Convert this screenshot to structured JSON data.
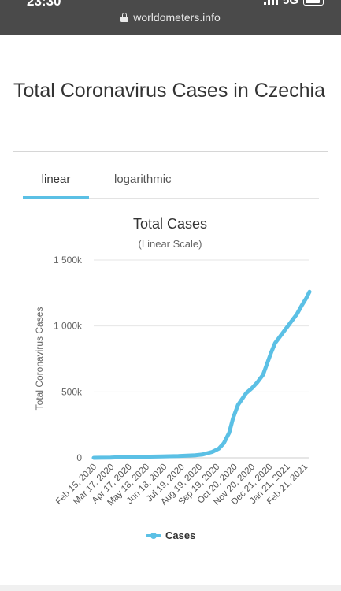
{
  "status_bar": {
    "time": "23:30",
    "network": "5G",
    "signal_icon": "signal-bars-icon",
    "battery_icon": "battery-icon"
  },
  "browser": {
    "url": "worldometers.info",
    "lock_icon": "lock-icon"
  },
  "page": {
    "title": "Total Coronavirus Cases in Czechia"
  },
  "tabs": {
    "linear": "linear",
    "logarithmic": "logarithmic",
    "active": "linear"
  },
  "colors": {
    "series": "#5bc0e5",
    "text": "#333333",
    "grid": "#e6e6e6"
  },
  "chart_data": {
    "type": "line",
    "title": "Total Cases",
    "subtitle": "(Linear Scale)",
    "ylabel": "Total Coronavirus Cases",
    "ylim": [
      0,
      1500000
    ],
    "yticks": [
      {
        "value": 0,
        "label": "0"
      },
      {
        "value": 500000,
        "label": "500k"
      },
      {
        "value": 1000000,
        "label": "1 000k"
      },
      {
        "value": 1500000,
        "label": "1 500k"
      }
    ],
    "xticks": [
      "Feb 15, 2020",
      "Mar 17, 2020",
      "Apr 17, 2020",
      "May 18, 2020",
      "Jun 18, 2020",
      "Jul 19, 2020",
      "Aug 19, 2020",
      "Sep 19, 2020",
      "Oct 20, 2020",
      "Nov 20, 2020",
      "Dec 21, 2020",
      "Jan 21, 2021",
      "Feb 21, 2021"
    ],
    "grid": true,
    "legend_position": "bottom",
    "series": [
      {
        "name": "Cases",
        "x": [
          "2020-02-15",
          "2020-03-17",
          "2020-04-17",
          "2020-05-18",
          "2020-06-18",
          "2020-07-19",
          "2020-08-19",
          "2020-09-01",
          "2020-09-19",
          "2020-10-01",
          "2020-10-10",
          "2020-10-20",
          "2020-10-27",
          "2020-11-05",
          "2020-11-20",
          "2020-12-01",
          "2020-12-10",
          "2020-12-21",
          "2020-12-28",
          "2021-01-05",
          "2021-01-12",
          "2021-01-21",
          "2021-01-30",
          "2021-02-10",
          "2021-02-21",
          "2021-03-01",
          "2021-03-10",
          "2021-03-16"
        ],
        "values": [
          0,
          1000,
          7000,
          8500,
          10500,
          14000,
          20000,
          25000,
          45000,
          70000,
          110000,
          190000,
          300000,
          400000,
          490000,
          530000,
          570000,
          630000,
          710000,
          800000,
          870000,
          920000,
          970000,
          1030000,
          1090000,
          1150000,
          1210000,
          1260000
        ]
      }
    ]
  }
}
